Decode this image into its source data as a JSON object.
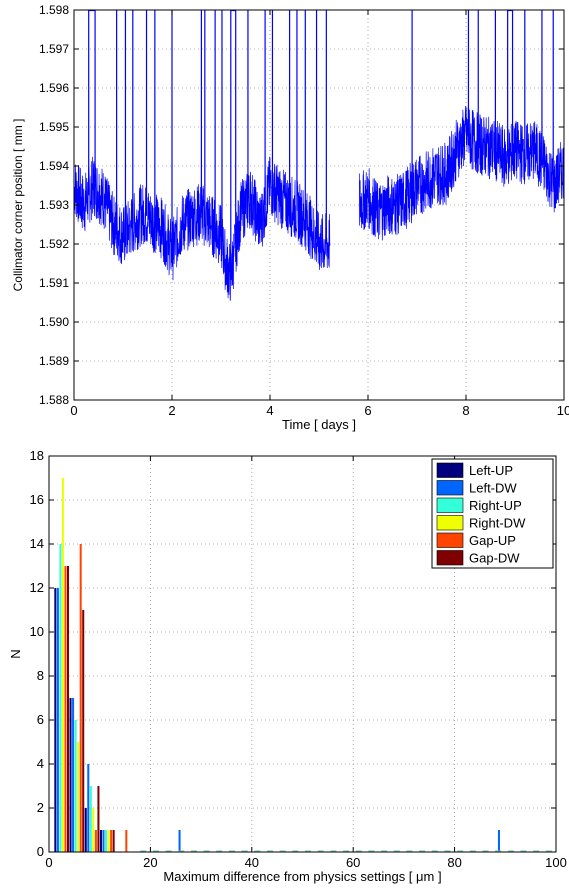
{
  "colors": {
    "Left-UP": "#00007f",
    "Left-DW": "#0066ff",
    "Right-UP": "#33ffd9",
    "Right-DW": "#eeff00",
    "Gap-UP": "#ff4400",
    "Gap-DW": "#800000",
    "timeline": "#0000ff"
  },
  "chart_data": [
    {
      "type": "line",
      "title": "",
      "xlabel": "Time [ days ]",
      "ylabel": "Collimator corner position [ mm ]",
      "xlim": [
        0,
        10
      ],
      "ylim": [
        1.588,
        1.598
      ],
      "xticks": [
        "0",
        "2",
        "4",
        "6",
        "8",
        "10"
      ],
      "yticks": [
        "1.588",
        "1.589",
        "1.590",
        "1.591",
        "1.592",
        "1.593",
        "1.594",
        "1.595",
        "1.596",
        "1.597",
        "1.598"
      ],
      "grid": true,
      "series": [
        {
          "x": [
            0.0,
            0.2,
            0.4,
            0.6,
            0.8,
            1.0,
            1.2,
            1.4,
            1.6,
            1.8,
            2.0,
            2.2,
            2.4,
            2.6,
            2.8,
            3.0,
            3.1,
            3.2,
            3.4,
            3.6,
            3.8,
            4.0,
            4.2,
            4.4,
            4.6,
            4.8,
            5.0,
            5.2,
            5.8,
            6.0,
            6.2,
            6.4,
            6.6,
            6.8,
            7.0,
            7.2,
            7.4,
            7.6,
            7.8,
            8.0,
            8.2,
            8.4,
            8.6,
            8.8,
            9.0,
            9.2,
            9.4,
            9.6,
            9.8,
            10.0
          ],
          "y": [
            1.5935,
            1.593,
            1.5935,
            1.5932,
            1.5925,
            1.5922,
            1.5925,
            1.5928,
            1.5926,
            1.5924,
            1.5918,
            1.5925,
            1.5927,
            1.5928,
            1.5925,
            1.5922,
            1.5915,
            1.5912,
            1.5928,
            1.5932,
            1.5925,
            1.5935,
            1.5932,
            1.593,
            1.5928,
            1.5925,
            1.592,
            1.592,
            1.593,
            1.5932,
            1.5928,
            1.593,
            1.593,
            1.5932,
            1.5935,
            1.5936,
            1.5938,
            1.5938,
            1.5944,
            1.5948,
            1.5946,
            1.5945,
            1.5944,
            1.5942,
            1.5944,
            1.5943,
            1.5944,
            1.594,
            1.5935,
            1.594
          ]
        }
      ],
      "spikes_x": [
        0.3,
        0.43,
        0.87,
        1.05,
        1.2,
        1.48,
        1.65,
        2.0,
        2.6,
        2.67,
        2.88,
        3.02,
        3.2,
        3.3,
        3.55,
        3.9,
        4.05,
        4.4,
        4.55,
        4.72,
        4.95,
        5.15,
        6.9,
        8.05,
        8.25,
        8.6,
        8.85,
        8.95,
        9.2,
        9.55,
        9.78
      ]
    },
    {
      "type": "bar",
      "title": "",
      "xlabel": "Maximum difference from physics settings [ μm ]",
      "ylabel": "N",
      "xlim": [
        0,
        100
      ],
      "ylim": [
        0,
        18
      ],
      "xticks": [
        "0",
        "20",
        "40",
        "60",
        "80",
        "100"
      ],
      "yticks": [
        "0",
        "2",
        "4",
        "6",
        "8",
        "10",
        "12",
        "14",
        "16",
        "18"
      ],
      "grid": true,
      "legend_position": "top-right",
      "bin_centers": [
        2.5,
        5.5,
        8.5,
        11.5,
        14.5,
        26.5,
        89.5
      ],
      "series": [
        {
          "name": "Left-UP",
          "values": [
            12,
            7,
            2,
            1,
            0,
            0,
            0
          ]
        },
        {
          "name": "Left-DW",
          "values": [
            12,
            7,
            4,
            1,
            0,
            1,
            1
          ]
        },
        {
          "name": "Right-UP",
          "values": [
            14,
            6,
            3,
            1,
            0,
            0,
            0
          ]
        },
        {
          "name": "Right-DW",
          "values": [
            17,
            5,
            2,
            1,
            0,
            0,
            0
          ]
        },
        {
          "name": "Gap-UP",
          "values": [
            13,
            14,
            1,
            1,
            1,
            0,
            0
          ]
        },
        {
          "name": "Gap-DW",
          "values": [
            13,
            11,
            3,
            1,
            0,
            0,
            0
          ]
        }
      ]
    }
  ]
}
